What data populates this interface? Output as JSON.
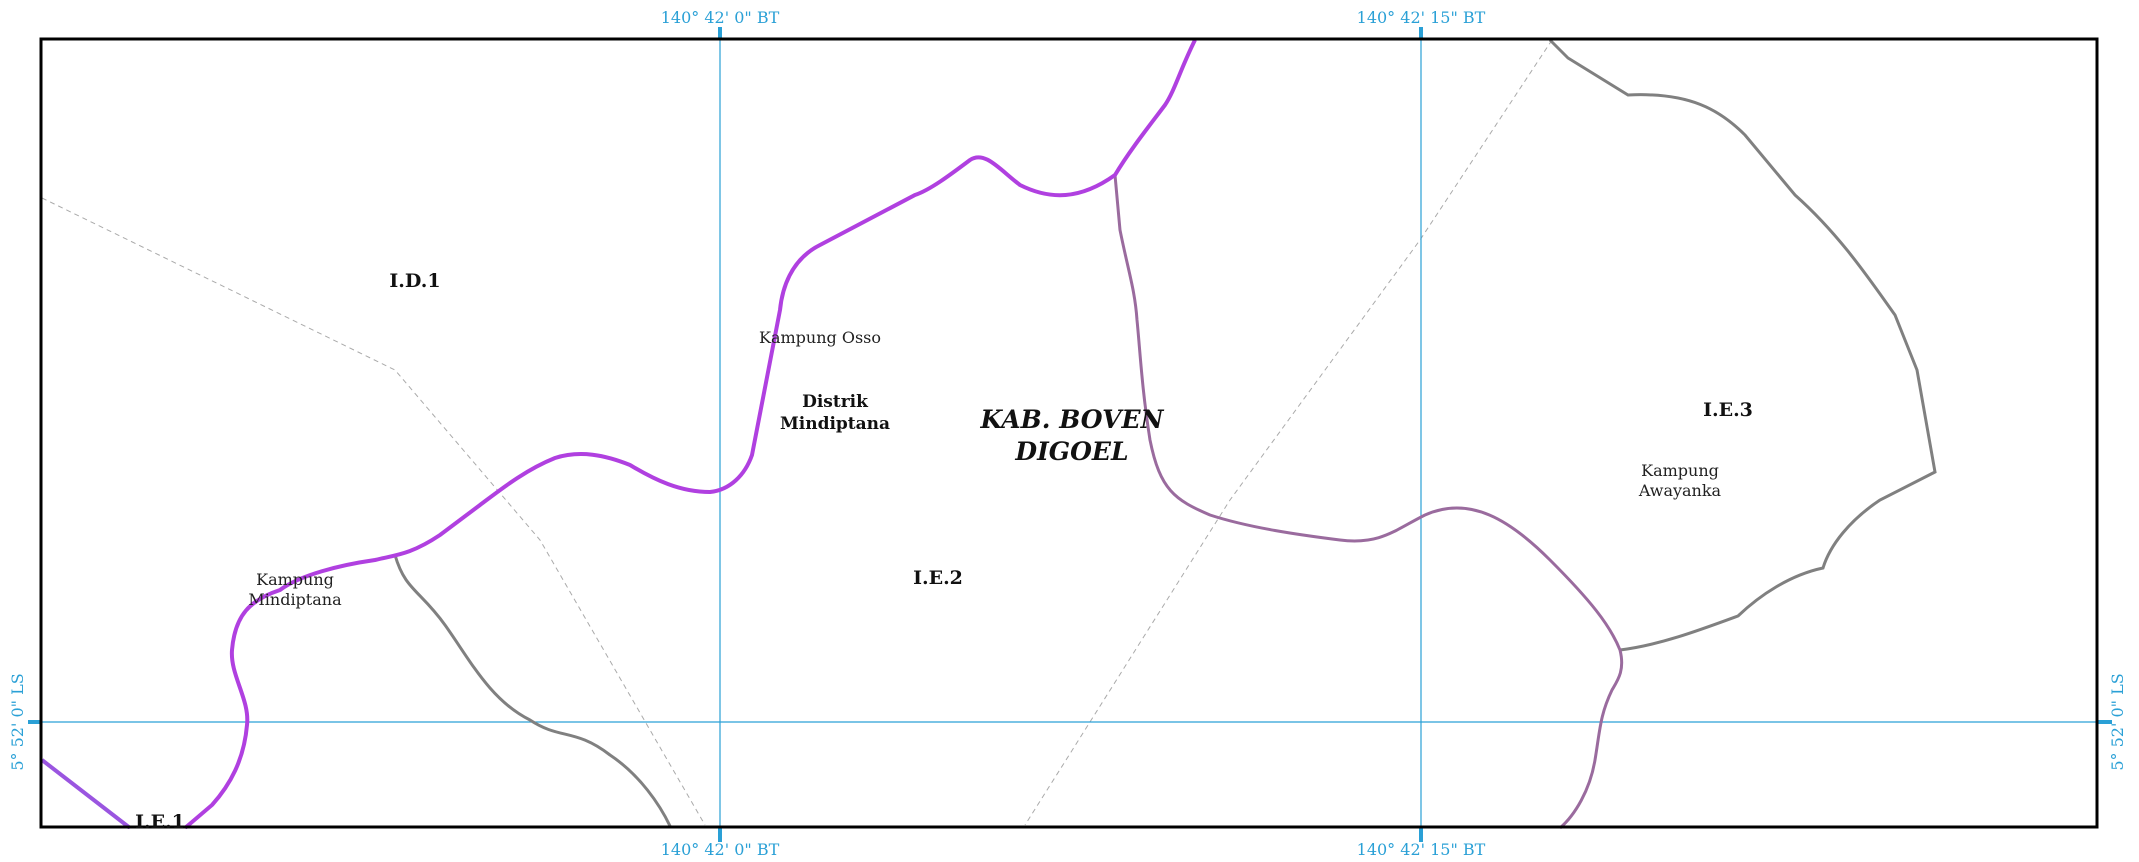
{
  "coordinates": {
    "lon_left": "140° 42' 0\" BT",
    "lon_right": "140° 42' 15\" BT",
    "lat": "5° 52' 0\" LS"
  },
  "labels": {
    "id1": "I.D.1",
    "ie1": "I.E.1",
    "ie2": "I.E.2",
    "ie3": "I.E.3",
    "kampung_osso": "Kampung Osso",
    "distrik_line1": "Distrik",
    "distrik_line2": "Mindiptana",
    "kab_line1": "KAB. BOVEN",
    "kab_line2": "DIGOEL",
    "kampung_awayanka_line1": "Kampung",
    "kampung_awayanka_line2": "Awayanka",
    "kampung_mindiptana_line1": "Kampung",
    "kampung_mindiptana_line2": "Mindiptana"
  },
  "colors": {
    "frame": "#000000",
    "graticule": "#2aa0d6",
    "district_boundary": "#b040e0",
    "unit_boundary": "#808080",
    "shared_boundary": "#9a6b9e",
    "regency_boundary_dashed": "#aaaaaa",
    "edge_segment": "#9a55e0"
  }
}
